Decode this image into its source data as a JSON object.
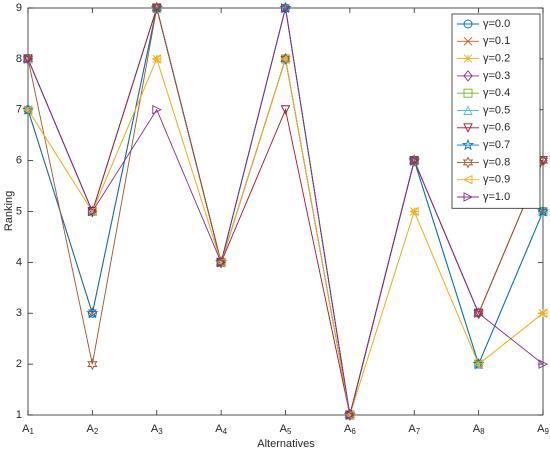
{
  "chart_data": {
    "type": "line",
    "x_label": "Alternatives",
    "y_label": "Ranking",
    "categories": [
      "A1",
      "A2",
      "A3",
      "A4",
      "A5",
      "A6",
      "A7",
      "A8",
      "A9"
    ],
    "ylim": [
      1,
      9
    ],
    "yticks": [
      1,
      2,
      3,
      4,
      5,
      6,
      7,
      8,
      9
    ],
    "legend": "upper right",
    "series": [
      {
        "name": "γ=0.0",
        "color": "#0072BD",
        "marker": "circle",
        "values": [
          7,
          3,
          9,
          4,
          9,
          1,
          6,
          2,
          5
        ]
      },
      {
        "name": "γ=0.1",
        "color": "#D95319",
        "marker": "x",
        "values": [
          7,
          3,
          9,
          4,
          9,
          1,
          6,
          2,
          5
        ]
      },
      {
        "name": "γ=0.2",
        "color": "#EDB120",
        "marker": "asterisk",
        "values": [
          7,
          5,
          8,
          4,
          8,
          1,
          5,
          2,
          3
        ]
      },
      {
        "name": "γ=0.3",
        "color": "#7E2F8E",
        "marker": "diamond",
        "values": [
          8,
          5,
          9,
          4,
          8,
          1,
          6,
          3,
          6
        ]
      },
      {
        "name": "γ=0.4",
        "color": "#77AC30",
        "marker": "square",
        "values": [
          8,
          5,
          9,
          4,
          8,
          1,
          6,
          2,
          5
        ]
      },
      {
        "name": "γ=0.5",
        "color": "#4DBEEE",
        "marker": "triangle-up",
        "values": [
          8,
          5,
          9,
          4,
          8,
          1,
          6,
          2,
          5
        ]
      },
      {
        "name": "γ=0.6",
        "color": "#A2142F",
        "marker": "triangle-down",
        "values": [
          8,
          5,
          9,
          4,
          7,
          1,
          6,
          3,
          6
        ]
      },
      {
        "name": "γ=0.7",
        "color": "#0072BD",
        "marker": "star",
        "values": [
          7,
          3,
          9,
          4,
          9,
          1,
          6,
          2,
          5
        ]
      },
      {
        "name": "γ=0.8",
        "color": "#A0522D",
        "marker": "hexagram",
        "values": [
          8,
          2,
          9,
          4,
          8,
          1,
          6,
          3,
          6
        ]
      },
      {
        "name": "γ=0.9",
        "color": "#EDB120",
        "marker": "triangle-left",
        "values": [
          7,
          5,
          8,
          4,
          8,
          1,
          5,
          2,
          3
        ]
      },
      {
        "name": "γ=1.0",
        "color": "#7E2F8E",
        "marker": "triangle-right",
        "values": [
          8,
          5,
          7,
          4,
          9,
          1,
          6,
          3,
          2
        ]
      }
    ]
  }
}
